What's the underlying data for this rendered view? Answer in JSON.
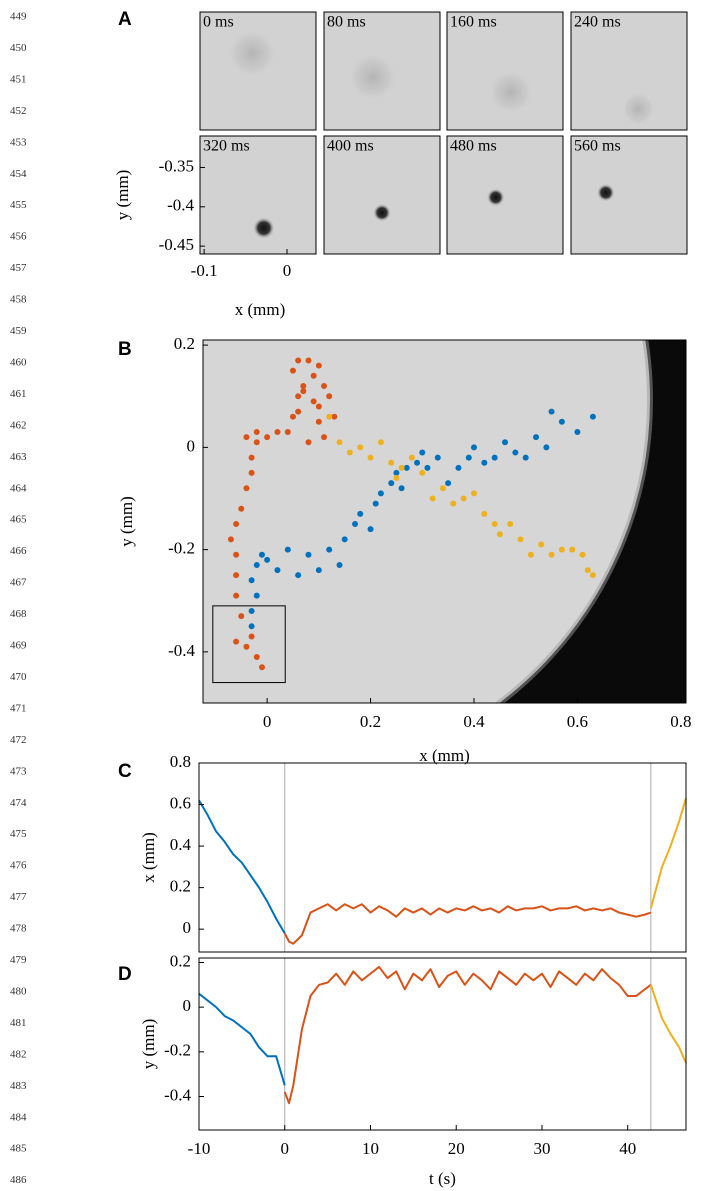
{
  "line_numbers": [
    449,
    450,
    451,
    452,
    453,
    454,
    455,
    456,
    457,
    458,
    459,
    460,
    461,
    462,
    463,
    464,
    465,
    466,
    467,
    468,
    469,
    470,
    471,
    472,
    473,
    474,
    475,
    476,
    477,
    478,
    479,
    480,
    481,
    482,
    483,
    484,
    485,
    486
  ],
  "panel_a": {
    "label": "A",
    "frames": [
      "0 ms",
      "80 ms",
      "160 ms",
      "240 ms",
      "320 ms",
      "400 ms",
      "480 ms",
      "560 ms"
    ],
    "xlabel": "x (mm)",
    "ylabel": "y (mm)",
    "xlim": [
      -0.105,
      0.035
    ],
    "ylim": [
      -0.46,
      -0.31
    ],
    "xticks": [
      -0.1,
      0
    ],
    "yticks": [
      -0.35,
      -0.4,
      -0.45
    ]
  },
  "chart_data": [
    {
      "type": "scatter",
      "label": "B",
      "xlabel": "x (mm)",
      "ylabel": "y (mm)",
      "xlim": [
        -0.124,
        0.81
      ],
      "ylim": [
        -0.5,
        0.21
      ],
      "xticks": [
        0,
        0.2,
        0.4,
        0.6,
        0.8
      ],
      "yticks": [
        -0.4,
        -0.2,
        0,
        0.2
      ],
      "series": [
        {
          "color": "#0072bd",
          "x": [
            -0.03,
            -0.03,
            -0.02,
            -0.03,
            -0.02,
            -0.01,
            0.0,
            0.02,
            0.04,
            0.06,
            0.08,
            0.1,
            0.12,
            0.14,
            0.15,
            0.17,
            0.18,
            0.2,
            0.21,
            0.22,
            0.24,
            0.25,
            0.26,
            0.27,
            0.29,
            0.3,
            0.31,
            0.33,
            0.35,
            0.37,
            0.39,
            0.4,
            0.42,
            0.44,
            0.46,
            0.48,
            0.5,
            0.52,
            0.54,
            0.55,
            0.57,
            0.6,
            0.63
          ],
          "values": [
            -0.35,
            -0.32,
            -0.29,
            -0.26,
            -0.23,
            -0.21,
            -0.22,
            -0.24,
            -0.2,
            -0.25,
            -0.21,
            -0.24,
            -0.2,
            -0.23,
            -0.18,
            -0.15,
            -0.13,
            -0.16,
            -0.11,
            -0.09,
            -0.07,
            -0.05,
            -0.08,
            -0.04,
            -0.03,
            -0.01,
            -0.04,
            -0.02,
            -0.07,
            -0.04,
            -0.02,
            0.0,
            -0.03,
            -0.02,
            0.01,
            -0.01,
            -0.02,
            0.02,
            0.0,
            0.07,
            0.05,
            0.03,
            0.06
          ]
        },
        {
          "color": "#d95319",
          "x": [
            -0.01,
            -0.02,
            -0.04,
            -0.06,
            -0.03,
            -0.05,
            -0.06,
            -0.06,
            -0.06,
            -0.07,
            -0.06,
            -0.05,
            -0.04,
            -0.03,
            -0.03,
            -0.02,
            -0.04,
            -0.02,
            0.0,
            0.02,
            0.04,
            0.05,
            0.06,
            0.05,
            0.06,
            0.08,
            0.1,
            0.11,
            0.07,
            0.09,
            0.12,
            0.06,
            0.1,
            0.08,
            0.11,
            0.13,
            0.09,
            0.07,
            0.1
          ],
          "values": [
            -0.43,
            -0.41,
            -0.39,
            -0.38,
            -0.37,
            -0.33,
            -0.29,
            -0.25,
            -0.21,
            -0.18,
            -0.15,
            -0.12,
            -0.08,
            -0.05,
            -0.02,
            0.01,
            0.02,
            0.03,
            0.02,
            0.03,
            0.03,
            0.06,
            0.1,
            0.15,
            0.17,
            0.17,
            0.16,
            0.12,
            0.12,
            0.09,
            0.1,
            0.07,
            0.05,
            0.01,
            0.02,
            0.06,
            0.14,
            0.11,
            0.08
          ]
        },
        {
          "color": "#edb120",
          "x": [
            0.12,
            0.14,
            0.16,
            0.18,
            0.2,
            0.22,
            0.24,
            0.25,
            0.26,
            0.28,
            0.3,
            0.32,
            0.34,
            0.36,
            0.38,
            0.4,
            0.42,
            0.44,
            0.45,
            0.47,
            0.49,
            0.51,
            0.53,
            0.55,
            0.57,
            0.59,
            0.61,
            0.62,
            0.63
          ],
          "values": [
            0.06,
            0.01,
            -0.01,
            0.0,
            -0.02,
            0.01,
            -0.03,
            -0.06,
            -0.04,
            -0.02,
            -0.05,
            -0.1,
            -0.08,
            -0.11,
            -0.1,
            -0.09,
            -0.13,
            -0.15,
            -0.17,
            -0.15,
            -0.18,
            -0.21,
            -0.19,
            -0.21,
            -0.2,
            -0.2,
            -0.21,
            -0.24,
            -0.25
          ]
        }
      ]
    },
    {
      "type": "line",
      "label": "C",
      "ylabel": "x (mm)",
      "xlim": [
        -10,
        46.8
      ],
      "ylim": [
        -0.11,
        0.8
      ],
      "yticks": [
        0,
        0.2,
        0.4,
        0.6,
        0.8
      ],
      "vlines": [
        0,
        42.7
      ],
      "series": [
        {
          "color": "#0072bd",
          "x": [
            -10,
            -9,
            -8,
            -7,
            -6,
            -5,
            -4,
            -3,
            -2,
            -1,
            0
          ],
          "values": [
            0.62,
            0.55,
            0.47,
            0.42,
            0.36,
            0.32,
            0.26,
            0.2,
            0.13,
            0.05,
            -0.02
          ]
        },
        {
          "color": "#d95319",
          "x": [
            0,
            0.5,
            1,
            2,
            3,
            4,
            5,
            6,
            7,
            8,
            9,
            10,
            11,
            12,
            13,
            14,
            15,
            16,
            17,
            18,
            19,
            20,
            21,
            22,
            23,
            24,
            25,
            26,
            27,
            28,
            29,
            30,
            31,
            32,
            33,
            34,
            35,
            36,
            37,
            38,
            39,
            40,
            41,
            42,
            42.7
          ],
          "values": [
            -0.02,
            -0.06,
            -0.07,
            -0.03,
            0.08,
            0.1,
            0.12,
            0.09,
            0.12,
            0.1,
            0.12,
            0.08,
            0.11,
            0.09,
            0.06,
            0.1,
            0.08,
            0.1,
            0.07,
            0.1,
            0.08,
            0.1,
            0.09,
            0.11,
            0.09,
            0.1,
            0.08,
            0.11,
            0.09,
            0.1,
            0.1,
            0.11,
            0.09,
            0.1,
            0.1,
            0.11,
            0.09,
            0.1,
            0.09,
            0.1,
            0.08,
            0.07,
            0.06,
            0.07,
            0.08
          ]
        },
        {
          "color": "#edb120",
          "x": [
            42.7,
            44,
            45,
            46,
            46.8
          ],
          "values": [
            0.1,
            0.3,
            0.4,
            0.52,
            0.63
          ]
        }
      ]
    },
    {
      "type": "line",
      "label": "D",
      "xlabel": "t (s)",
      "ylabel": "y (mm)",
      "xlim": [
        -10,
        46.8
      ],
      "ylim": [
        -0.55,
        0.22
      ],
      "xticks": [
        -10,
        0,
        10,
        20,
        30,
        40
      ],
      "yticks": [
        -0.4,
        -0.2,
        0,
        0.2
      ],
      "vlines": [
        0,
        42.7
      ],
      "series": [
        {
          "color": "#0072bd",
          "x": [
            -10,
            -9,
            -8,
            -7,
            -6,
            -5,
            -4,
            -3,
            -2,
            -1,
            0
          ],
          "values": [
            0.06,
            0.03,
            0,
            -0.04,
            -0.06,
            -0.09,
            -0.12,
            -0.18,
            -0.22,
            -0.22,
            -0.35
          ]
        },
        {
          "color": "#d95319",
          "x": [
            0,
            0.5,
            1,
            2,
            3,
            4,
            5,
            6,
            7,
            8,
            9,
            10,
            11,
            12,
            13,
            14,
            15,
            16,
            17,
            18,
            19,
            20,
            21,
            22,
            23,
            24,
            25,
            26,
            27,
            28,
            29,
            30,
            31,
            32,
            33,
            34,
            35,
            36,
            37,
            38,
            39,
            40,
            41,
            42,
            42.7
          ],
          "values": [
            -0.38,
            -0.43,
            -0.35,
            -0.1,
            0.05,
            0.1,
            0.11,
            0.15,
            0.1,
            0.16,
            0.12,
            0.15,
            0.18,
            0.13,
            0.16,
            0.08,
            0.15,
            0.12,
            0.17,
            0.09,
            0.14,
            0.16,
            0.1,
            0.15,
            0.12,
            0.08,
            0.16,
            0.13,
            0.1,
            0.15,
            0.12,
            0.15,
            0.09,
            0.16,
            0.13,
            0.1,
            0.15,
            0.12,
            0.17,
            0.13,
            0.1,
            0.05,
            0.05,
            0.08,
            0.1
          ]
        },
        {
          "color": "#edb120",
          "x": [
            42.7,
            44,
            45,
            46,
            46.8
          ],
          "values": [
            0.1,
            -0.05,
            -0.12,
            -0.18,
            -0.25
          ]
        }
      ]
    }
  ]
}
